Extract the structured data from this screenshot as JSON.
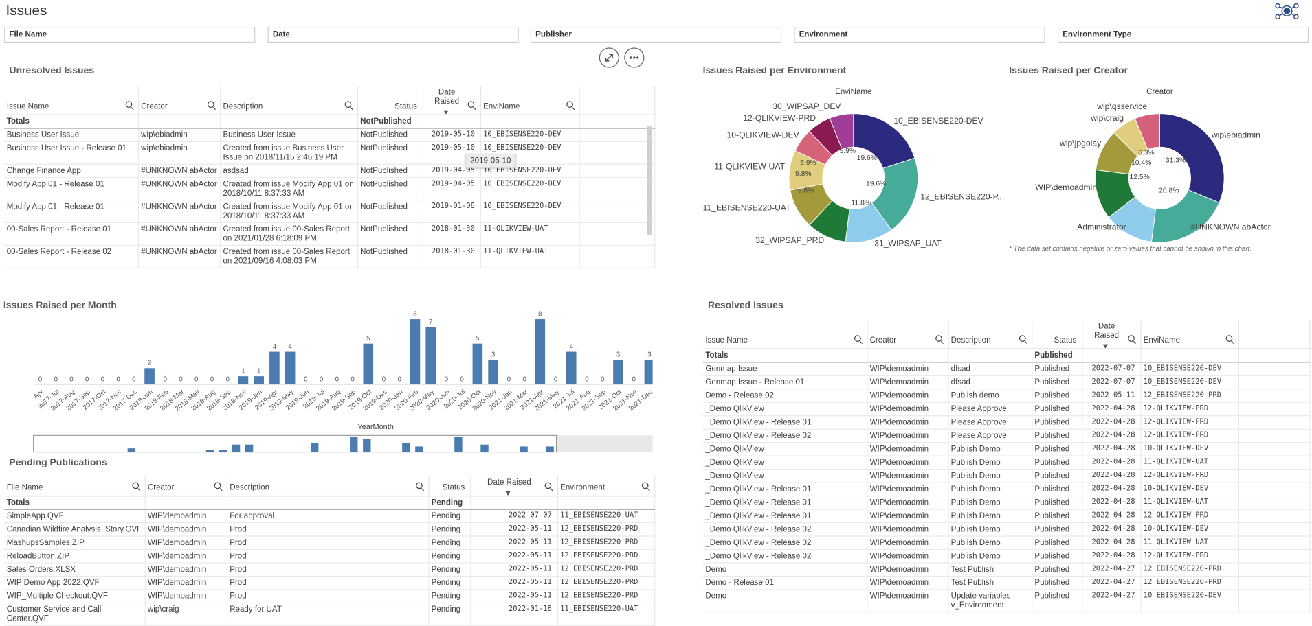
{
  "header": {
    "title": "Issues"
  },
  "filters": [
    "File Name",
    "Date",
    "Publisher",
    "Environment",
    "Environment Type"
  ],
  "unresolved": {
    "title": "Unresolved Issues",
    "columns": [
      "Issue Name",
      "Creator",
      "Description",
      "Status",
      "Date Raised",
      "EnviName"
    ],
    "totals": {
      "label": "Totals",
      "status": "NotPublished"
    },
    "rows": [
      [
        "Business User Issue",
        "wip\\ebiadmin",
        "Business User Issue",
        "NotPublished",
        "2019-05-10",
        "10_EBISENSE220-DEV"
      ],
      [
        "Business User Issue - Release 01",
        "wip\\ebiadmin",
        "Created from issue Business User Issue on 2018/11/15 2:46:19 PM",
        "NotPublished",
        "2019-05-10",
        "10_EBISENSE220-DEV"
      ],
      [
        "Change Finance App",
        "#UNKNOWN abActor",
        "asdsad",
        "NotPublished",
        "2019-04-05",
        "10_EBISENSE220-DEV"
      ],
      [
        "Modify App 01 - Release 01",
        "#UNKNOWN abActor",
        "Created from issue Modify App 01 on 2018/10/11 8:37:33 AM",
        "NotPublished",
        "2019-04-05",
        "10_EBISENSE220-DEV"
      ],
      [
        "Modify App 01 - Release 01",
        "#UNKNOWN abActor",
        "Created from issue Modify App 01 on 2018/10/11 8:37:33 AM",
        "NotPublished",
        "2019-01-08",
        "10_EBISENSE220-DEV"
      ],
      [
        "00-Sales Report - Release 01",
        "#UNKNOWN abActor",
        "Created from issue 00-Sales Report on 2021/01/28 6:18:09 PM",
        "NotPublished",
        "2018-01-30",
        "11-QLIKVIEW-UAT"
      ],
      [
        "00-Sales Report - Release 02",
        "#UNKNOWN abActor",
        "Created from issue 00-Sales Report on 2021/09/16 4:08:03 PM",
        "NotPublished",
        "2018-01-30",
        "11-QLIKVIEW-UAT"
      ]
    ]
  },
  "tooltip": "2019-05-10",
  "chart_data": [
    {
      "type": "donut",
      "title": "Issues Raised per Environment",
      "dimension": "EnviName",
      "categories": [
        "10_EBISENSE220-DEV",
        "12_EBISENSE220-P...",
        "31_WIPSAP_UAT",
        "32_WIPSAP_PRD",
        "11_EBISENSE220-UAT",
        "11-QLIKVIEW-UAT",
        "10-QLIKVIEW-DEV",
        "12-QLIKVIEW-PRD",
        "30_WIPSAP_DEV"
      ],
      "values": [
        19.6,
        19.6,
        11.8,
        9.8,
        9.8,
        9.8,
        5.9,
        5.9,
        5.9
      ],
      "value_labels": [
        "19.6%",
        "19.6%",
        "11.8%",
        null,
        "9.8%",
        "9.8%",
        "5.9%",
        null,
        "5.9%"
      ],
      "colors": [
        "#2b2a7e",
        "#47ab99",
        "#8fcbeb",
        "#1f7a37",
        "#a29a3b",
        "#e1cd7e",
        "#d7637a",
        "#8b1a50",
        "#9f3d98"
      ]
    },
    {
      "type": "donut",
      "title": "Issues Raised per Creator",
      "dimension": "Creator",
      "categories": [
        "wip\\ebiadmin",
        "#UNKNOWN abActor",
        "Administrator",
        "WIP\\demoadmin",
        "wip\\jpgolay",
        "wip\\craig",
        "wip\\qsservice"
      ],
      "values": [
        31.3,
        20.8,
        12.5,
        12.5,
        10.4,
        6.3,
        6.3
      ],
      "value_labels": [
        "31.3%",
        "20.8%",
        null,
        "12.5%",
        "10.4%",
        "6.3%",
        null
      ],
      "colors": [
        "#2b2a7e",
        "#47ab99",
        "#8fcbeb",
        "#1f7a37",
        "#a29a3b",
        "#e1cd7e",
        "#d4607a"
      ],
      "note": "* The data set contains negative or zero values that cannot be shown in this chart."
    },
    {
      "type": "bar",
      "title": "Issues Raised per Month",
      "x_label": "YearMonth",
      "color": "#4a7cb0",
      "categories": [
        "2017-Apr",
        "2017-Jul",
        "2017-Aug",
        "2017-Sep",
        "2017-Oct",
        "2017-Nov",
        "2017-Dec",
        "2018-Jan",
        "2018-Feb",
        "2018-Mar",
        "2018-May",
        "2018-Aug",
        "2018-Sep",
        "2018-Nov",
        "2019-Jan",
        "2019-Apr",
        "2019-May",
        "2019-Jun",
        "2019-Jul",
        "2019-Aug",
        "2019-Sep",
        "2019-Oct",
        "2019-Dec",
        "2020-Jan",
        "2020-Feb",
        "2020-May",
        "2020-Jun",
        "2020-Jul",
        "2020-Oct",
        "2020-Nov",
        "2021-Jan",
        "2021-Mar",
        "2021-Apr",
        "2021-May",
        "2021-Jul",
        "2021-Aug",
        "2021-Sep",
        "2021-Oct",
        "2021-Nov",
        "2021-Dec"
      ],
      "values": [
        0,
        0,
        0,
        0,
        0,
        0,
        0,
        2,
        0,
        0,
        0,
        0,
        0,
        1,
        1,
        4,
        4,
        0,
        0,
        0,
        0,
        5,
        0,
        0,
        8,
        7,
        0,
        0,
        5,
        3,
        0,
        0,
        8,
        0,
        4,
        0,
        0,
        3,
        0,
        3
      ],
      "ylim": [
        0,
        8
      ]
    }
  ],
  "pending": {
    "title": "Pending Publications",
    "columns": [
      "File Name",
      "Creator",
      "Description",
      "Status",
      "Date Raised",
      "Environment"
    ],
    "totals": {
      "label": "Totals",
      "status": "Pending"
    },
    "rows": [
      [
        "SimpleApp.QVF",
        "WIP\\demoadmin",
        "For approval",
        "Pending",
        "2022-07-07",
        "11_EBISENSE220-UAT"
      ],
      [
        "Canadian Wildfire Analysis_Story.QVF",
        "WIP\\demoadmin",
        "Prod",
        "Pending",
        "2022-05-11",
        "12_EBISENSE220-PRD"
      ],
      [
        "MashupsSamples.ZIP",
        "WIP\\demoadmin",
        "Prod",
        "Pending",
        "2022-05-11",
        "12_EBISENSE220-PRD"
      ],
      [
        "ReloadButton.ZIP",
        "WIP\\demoadmin",
        "Prod",
        "Pending",
        "2022-05-11",
        "12_EBISENSE220-PRD"
      ],
      [
        "Sales Orders.XLSX",
        "WIP\\demoadmin",
        "Prod",
        "Pending",
        "2022-05-11",
        "12_EBISENSE220-PRD"
      ],
      [
        "WIP Demo App 2022.QVF",
        "WIP\\demoadmin",
        "Prod",
        "Pending",
        "2022-05-11",
        "12_EBISENSE220-PRD"
      ],
      [
        "WIP_Multiple Checkout.QVF",
        "WIP\\demoadmin",
        "Prod",
        "Pending",
        "2022-05-11",
        "12_EBISENSE220-PRD"
      ],
      [
        "Customer Service and Call Center.QVF",
        "wip\\craig",
        "Ready for UAT",
        "Pending",
        "2022-01-18",
        "11_EBISENSE220-UAT"
      ]
    ]
  },
  "resolved": {
    "title": "Resolved Issues",
    "columns": [
      "Issue Name",
      "Creator",
      "Description",
      "Status",
      "Date Raised",
      "EnviName"
    ],
    "totals": {
      "label": "Totals",
      "status": "Published"
    },
    "rows": [
      [
        "Genmap Issue",
        "WIP\\demoadmin",
        "dfsad",
        "Published",
        "2022-07-07",
        "10_EBISENSE220-DEV"
      ],
      [
        "Genmap Issue - Release 01",
        "WIP\\demoadmin",
        "dfsad",
        "Published",
        "2022-07-07",
        "10_EBISENSE220-DEV"
      ],
      [
        "Demo - Release 02",
        "WIP\\demoadmin",
        "Publish demo",
        "Published",
        "2022-05-11",
        "12_EBISENSE220-PRD"
      ],
      [
        "_Demo QlikView",
        "WIP\\demoadmin",
        "Please Approve",
        "Published",
        "2022-04-28",
        "12-QLIKVIEW-PRD"
      ],
      [
        "_Demo QlikView - Release 01",
        "WIP\\demoadmin",
        "Please Approve",
        "Published",
        "2022-04-28",
        "12-QLIKVIEW-PRD"
      ],
      [
        "_Demo QlikView - Release 02",
        "WIP\\demoadmin",
        "Please Approve",
        "Published",
        "2022-04-28",
        "12-QLIKVIEW-PRD"
      ],
      [
        "_Demo QlikView",
        "WIP\\demoadmin",
        "Publish Demo",
        "Published",
        "2022-04-28",
        "10-QLIKVIEW-DEV"
      ],
      [
        "_Demo QlikView",
        "WIP\\demoadmin",
        "Publish Demo",
        "Published",
        "2022-04-28",
        "11-QLIKVIEW-UAT"
      ],
      [
        "_Demo QlikView",
        "WIP\\demoadmin",
        "Publish Demo",
        "Published",
        "2022-04-28",
        "12-QLIKVIEW-PRD"
      ],
      [
        "_Demo QlikView - Release 01",
        "WIP\\demoadmin",
        "Publish Demo",
        "Published",
        "2022-04-28",
        "10-QLIKVIEW-DEV"
      ],
      [
        "_Demo QlikView - Release 01",
        "WIP\\demoadmin",
        "Publish Demo",
        "Published",
        "2022-04-28",
        "11-QLIKVIEW-UAT"
      ],
      [
        "_Demo QlikView - Release 01",
        "WIP\\demoadmin",
        "Publish Demo",
        "Published",
        "2022-04-28",
        "12-QLIKVIEW-PRD"
      ],
      [
        "_Demo QlikView - Release 02",
        "WIP\\demoadmin",
        "Publish Demo",
        "Published",
        "2022-04-28",
        "10-QLIKVIEW-DEV"
      ],
      [
        "_Demo QlikView - Release 02",
        "WIP\\demoadmin",
        "Publish Demo",
        "Published",
        "2022-04-28",
        "11-QLIKVIEW-UAT"
      ],
      [
        "_Demo QlikView - Release 02",
        "WIP\\demoadmin",
        "Publish Demo",
        "Published",
        "2022-04-28",
        "12-QLIKVIEW-PRD"
      ],
      [
        "Demo",
        "WIP\\demoadmin",
        "Test Publish",
        "Published",
        "2022-04-27",
        "12_EBISENSE220-PRD"
      ],
      [
        "Demo - Release 01",
        "WIP\\demoadmin",
        "Test Publish",
        "Published",
        "2022-04-27",
        "12_EBISENSE220-PRD"
      ],
      [
        "Demo",
        "WIP\\demoadmin",
        "Update variables v_Environment",
        "Published",
        "2022-04-27",
        "10_EBISENSE220-DEV"
      ]
    ]
  }
}
